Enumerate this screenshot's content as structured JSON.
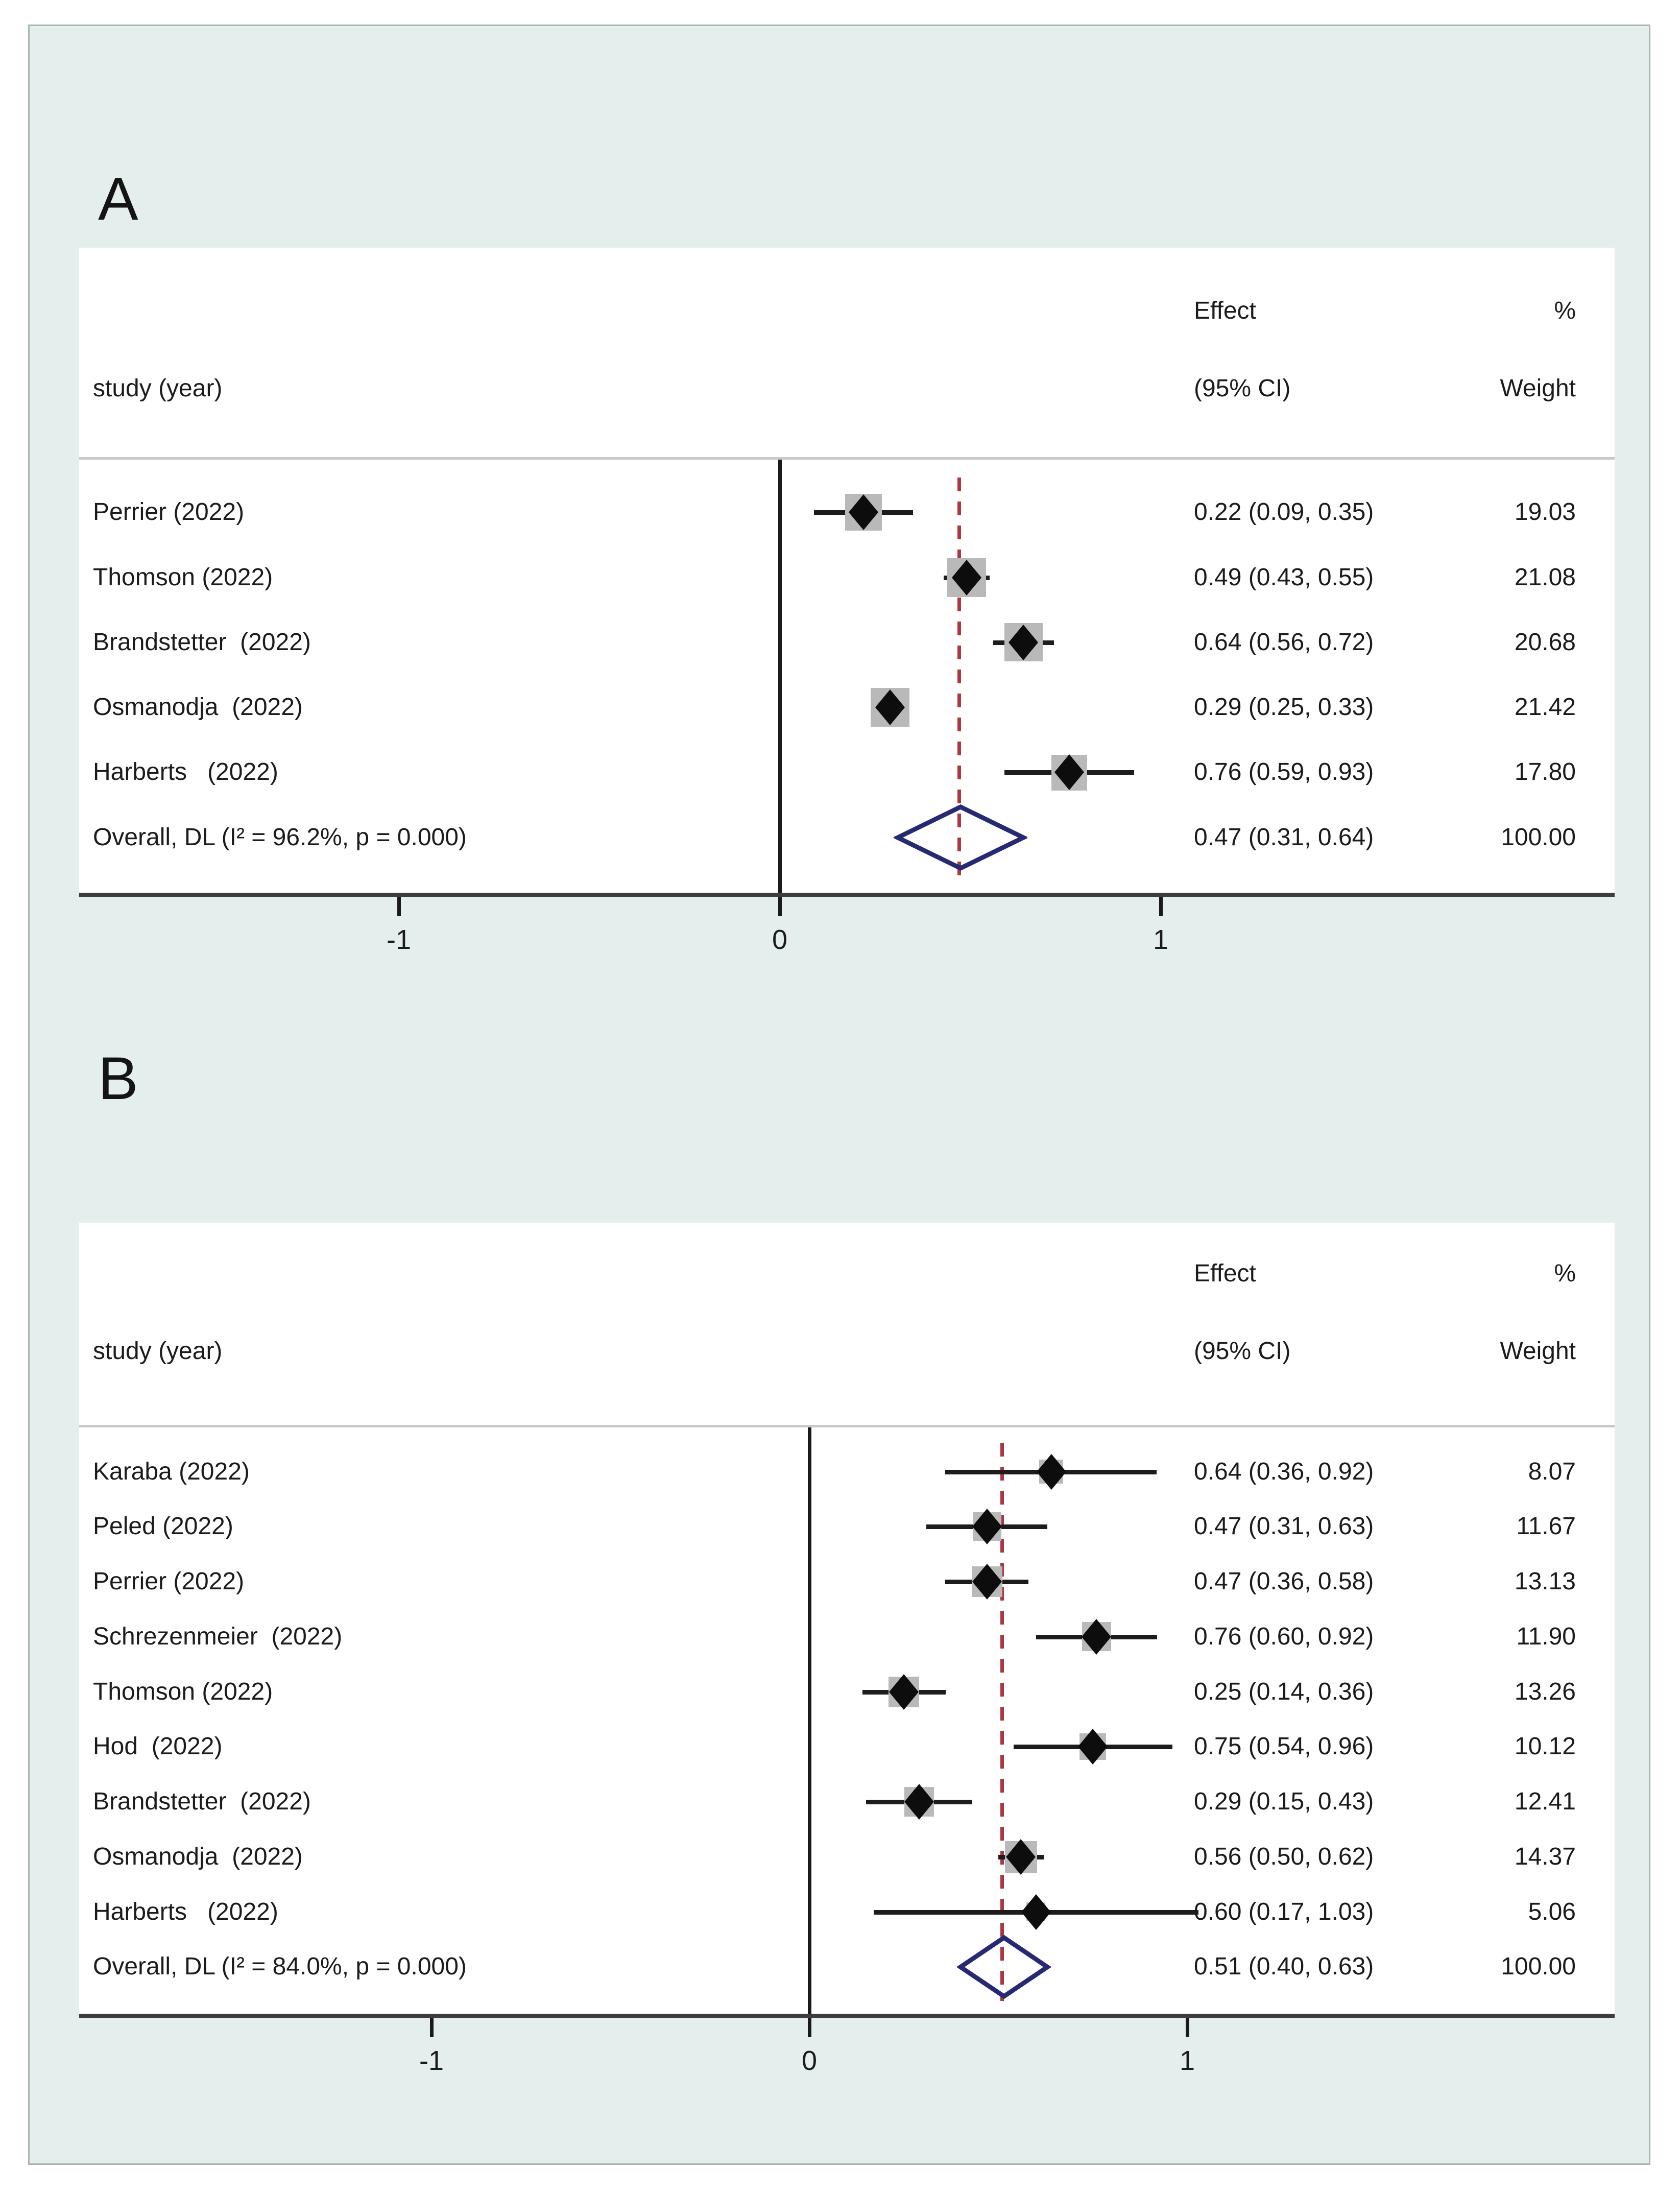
{
  "figure": {
    "page_bg": "#ffffff",
    "canvas_bg": "#e4efed",
    "canvas_border": "#a9b4b3",
    "panel_bg": "#ffffff"
  },
  "colors": {
    "text": "#1b1b1b",
    "axis_line": "#3d3d3d",
    "header_separator": "#c9c9c9",
    "zero_line": "#1a1a1a",
    "overall_ref_line": "#a93744",
    "ci_line": "#1c1c1c",
    "point_marker": "#0d0d0d",
    "weight_box": "#b9b9b9",
    "pooled_diamond": "#262a72"
  },
  "chart_data": [
    {
      "type": "forest",
      "panel_label": "A",
      "column_headers": {
        "study": "study (year)",
        "effect_top": "Effect",
        "effect_bottom": "(95% CI)",
        "weight_top": "%",
        "weight_bottom": "Weight"
      },
      "x_axis": {
        "ticks": [
          -1,
          0,
          1
        ],
        "tick_labels": [
          "-1",
          "0",
          "1"
        ],
        "xlim": [
          -1.84,
          2.19
        ],
        "zero_ref_line": 0,
        "grid": "off"
      },
      "overall_ref": 0.47,
      "studies": [
        {
          "label": "Perrier (2022)",
          "effect": 0.22,
          "ci_low": 0.09,
          "ci_high": 0.35,
          "weight": 19.03,
          "effect_text": "0.22 (0.09, 0.35)",
          "weight_text": "19.03"
        },
        {
          "label": "Thomson (2022)",
          "effect": 0.49,
          "ci_low": 0.43,
          "ci_high": 0.55,
          "weight": 21.08,
          "effect_text": "0.49 (0.43, 0.55)",
          "weight_text": "21.08"
        },
        {
          "label": "Brandstetter  (2022)",
          "effect": 0.64,
          "ci_low": 0.56,
          "ci_high": 0.72,
          "weight": 20.68,
          "effect_text": "0.64 (0.56, 0.72)",
          "weight_text": "20.68"
        },
        {
          "label": "Osmanodja  (2022)",
          "effect": 0.29,
          "ci_low": 0.25,
          "ci_high": 0.33,
          "weight": 21.42,
          "effect_text": "0.29 (0.25, 0.33)",
          "weight_text": "21.42"
        },
        {
          "label": "Harberts   (2022)",
          "effect": 0.76,
          "ci_low": 0.59,
          "ci_high": 0.93,
          "weight": 17.8,
          "effect_text": "0.76 (0.59, 0.93)",
          "weight_text": "17.80"
        }
      ],
      "overall": {
        "label": "Overall, DL (I² = 96.2%, p = 0.000)",
        "effect": 0.47,
        "ci_low": 0.31,
        "ci_high": 0.64,
        "effect_text": "0.47 (0.31, 0.64)",
        "weight_text": "100.00"
      }
    },
    {
      "type": "forest",
      "panel_label": "B",
      "column_headers": {
        "study": "study (year)",
        "effect_top": "Effect",
        "effect_bottom": "(95% CI)",
        "weight_top": "%",
        "weight_bottom": "Weight"
      },
      "x_axis": {
        "ticks": [
          -1,
          0,
          1
        ],
        "tick_labels": [
          "-1",
          "0",
          "1"
        ],
        "xlim": [
          -1.93,
          2.13
        ],
        "zero_ref_line": 0,
        "grid": "off"
      },
      "overall_ref": 0.51,
      "studies": [
        {
          "label": "Karaba (2022)",
          "effect": 0.64,
          "ci_low": 0.36,
          "ci_high": 0.92,
          "weight": 8.07,
          "effect_text": "0.64 (0.36, 0.92)",
          "weight_text": "8.07"
        },
        {
          "label": "Peled (2022)",
          "effect": 0.47,
          "ci_low": 0.31,
          "ci_high": 0.63,
          "weight": 11.67,
          "effect_text": "0.47 (0.31, 0.63)",
          "weight_text": "11.67"
        },
        {
          "label": "Perrier (2022)",
          "effect": 0.47,
          "ci_low": 0.36,
          "ci_high": 0.58,
          "weight": 13.13,
          "effect_text": "0.47 (0.36, 0.58)",
          "weight_text": "13.13"
        },
        {
          "label": "Schrezenmeier  (2022)",
          "effect": 0.76,
          "ci_low": 0.6,
          "ci_high": 0.92,
          "weight": 11.9,
          "effect_text": "0.76 (0.60, 0.92)",
          "weight_text": "11.90"
        },
        {
          "label": "Thomson (2022)",
          "effect": 0.25,
          "ci_low": 0.14,
          "ci_high": 0.36,
          "weight": 13.26,
          "effect_text": "0.25 (0.14, 0.36)",
          "weight_text": "13.26"
        },
        {
          "label": "Hod  (2022)",
          "effect": 0.75,
          "ci_low": 0.54,
          "ci_high": 0.96,
          "weight": 10.12,
          "effect_text": "0.75 (0.54, 0.96)",
          "weight_text": "10.12"
        },
        {
          "label": "Brandstetter  (2022)",
          "effect": 0.29,
          "ci_low": 0.15,
          "ci_high": 0.43,
          "weight": 12.41,
          "effect_text": "0.29 (0.15, 0.43)",
          "weight_text": "12.41"
        },
        {
          "label": "Osmanodja  (2022)",
          "effect": 0.56,
          "ci_low": 0.5,
          "ci_high": 0.62,
          "weight": 14.37,
          "effect_text": "0.56 (0.50, 0.62)",
          "weight_text": "14.37"
        },
        {
          "label": "Harberts   (2022)",
          "effect": 0.6,
          "ci_low": 0.17,
          "ci_high": 1.03,
          "weight": 5.06,
          "effect_text": "0.60 (0.17, 1.03)",
          "weight_text": "5.06"
        }
      ],
      "overall": {
        "label": "Overall, DL (I² = 84.0%, p = 0.000)",
        "effect": 0.51,
        "ci_low": 0.4,
        "ci_high": 0.63,
        "effect_text": "0.51 (0.40, 0.63)",
        "weight_text": "100.00"
      }
    }
  ]
}
